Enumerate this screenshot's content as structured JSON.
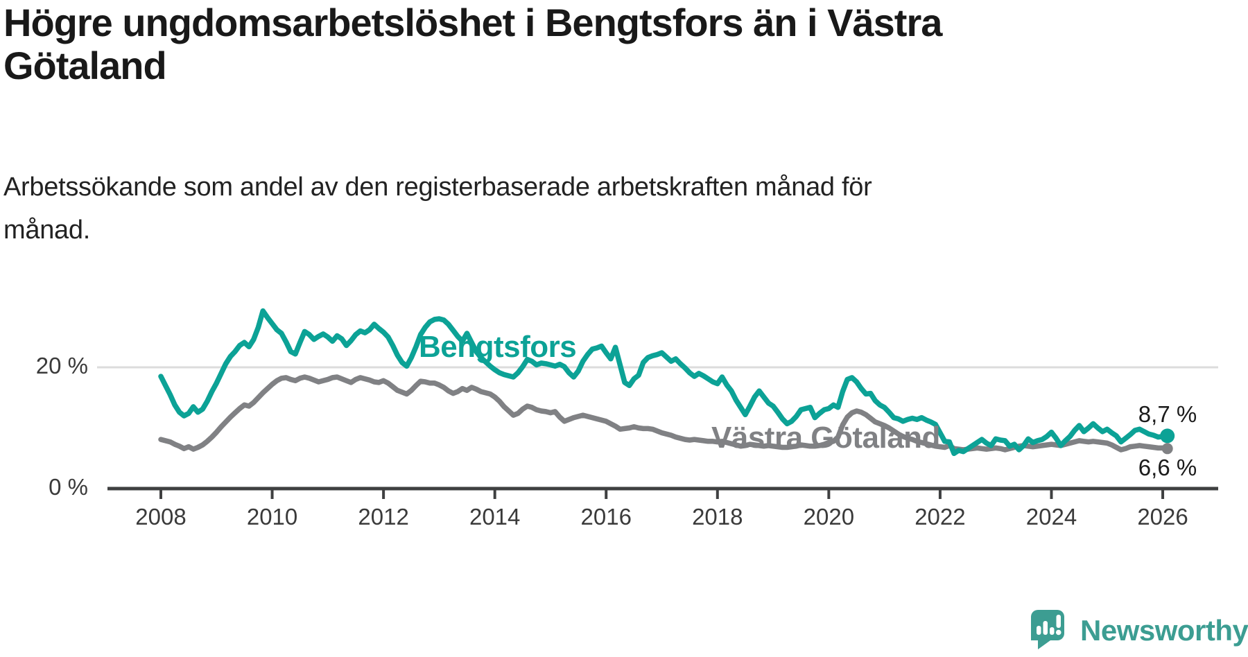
{
  "header": {
    "title": "Högre ungdomsarbetslöshet i Bengtsfors än i Västra\nGötaland",
    "subtitle": "Arbetssökande som andel av den registerbaserade arbetskraften månad för\nmånad."
  },
  "colors": {
    "bengtsfors": "#0CA296",
    "vastra_gotaland": "#808184",
    "axis": "#3F4041",
    "tick_text": "#3a3a3a",
    "grid": "#DCDCDC",
    "value_text": "#1b1b1b",
    "brand": "#3C9D92"
  },
  "chart_data": {
    "type": "line",
    "title": "Högre ungdomsarbetslöshet i Bengtsfors än i Västra Götaland",
    "subtitle": "Arbetssökande som andel av den registerbaserade arbetskraften månad för månad.",
    "x_start": "2008-01",
    "x_end": "2026-02",
    "x_ticks": [
      2008,
      2010,
      2012,
      2014,
      2016,
      2018,
      2020,
      2022,
      2024,
      2026
    ],
    "y_ticks": [
      {
        "value": 0,
        "label": "0 %"
      },
      {
        "value": 20,
        "label": "20 %"
      }
    ],
    "ylim": [
      0,
      31
    ],
    "grid": "horizontal line at 20% only",
    "legend_position": "inline labels on lines",
    "series": [
      {
        "name": "Bengtsfors",
        "color": "#0CA296",
        "end_label": "8,7 %",
        "end_value": 8.7,
        "values": [
          18.5,
          17.0,
          15.5,
          13.8,
          12.6,
          12.0,
          12.4,
          13.5,
          12.6,
          13.1,
          14.4,
          16.0,
          17.4,
          19.0,
          20.6,
          21.8,
          22.6,
          23.6,
          24.1,
          23.4,
          24.6,
          26.6,
          29.3,
          28.2,
          27.2,
          26.2,
          25.6,
          24.2,
          22.6,
          22.2,
          24.1,
          25.9,
          25.4,
          24.6,
          25.1,
          25.5,
          25.0,
          24.3,
          25.2,
          24.7,
          23.6,
          24.4,
          25.4,
          26.0,
          25.7,
          26.2,
          27.1,
          26.4,
          25.8,
          25.0,
          23.6,
          22.0,
          20.8,
          20.2,
          21.6,
          23.4,
          25.4,
          26.6,
          27.5,
          27.9,
          28.0,
          27.8,
          27.1,
          26.1,
          25.1,
          24.3,
          25.6,
          24.1,
          22.6,
          21.6,
          20.9,
          20.2,
          19.6,
          19.1,
          18.8,
          18.6,
          18.4,
          19.1,
          20.1,
          21.3,
          21.0,
          20.4,
          20.7,
          20.6,
          20.4,
          20.2,
          20.5,
          20.1,
          19.1,
          18.4,
          19.4,
          21.0,
          22.1,
          23.0,
          23.2,
          23.5,
          22.4,
          21.4,
          23.3,
          20.4,
          17.5,
          17.0,
          18.1,
          18.7,
          20.8,
          21.6,
          21.9,
          22.1,
          22.4,
          21.7,
          21.0,
          21.4,
          20.6,
          19.9,
          19.1,
          18.5,
          19.0,
          18.6,
          18.1,
          17.6,
          17.3,
          18.4,
          17.1,
          16.1,
          14.6,
          13.4,
          12.2,
          13.6,
          15.1,
          16.1,
          15.1,
          14.1,
          13.6,
          12.6,
          11.5,
          10.7,
          11.1,
          11.9,
          13.0,
          13.2,
          13.4,
          11.7,
          12.4,
          13.0,
          13.2,
          13.8,
          13.4,
          16.0,
          18.0,
          18.3,
          17.6,
          16.5,
          15.6,
          15.7,
          14.5,
          13.8,
          13.4,
          12.6,
          11.7,
          11.5,
          11.1,
          11.4,
          11.6,
          11.4,
          11.7,
          11.3,
          11.0,
          10.6,
          9.2,
          7.8,
          7.7,
          5.8,
          6.3,
          6.1,
          6.6,
          7.1,
          7.6,
          8.1,
          7.5,
          7.1,
          8.2,
          8.0,
          7.9,
          7.0,
          7.3,
          6.4,
          7.1,
          8.2,
          7.6,
          7.9,
          8.1,
          8.6,
          9.3,
          8.3,
          7.1,
          7.9,
          8.6,
          9.6,
          10.4,
          9.4,
          10.0,
          10.7,
          10.0,
          9.4,
          9.8,
          9.2,
          8.7,
          7.7,
          8.3,
          8.9,
          9.6,
          9.8,
          9.4,
          9.0,
          8.8,
          8.5,
          8.6,
          8.7
        ]
      },
      {
        "name": "Västra Götaland",
        "color": "#808184",
        "end_label": "6,6 %",
        "end_value": 6.6,
        "values": [
          8.1,
          7.9,
          7.7,
          7.3,
          7.0,
          6.6,
          6.9,
          6.5,
          6.8,
          7.2,
          7.8,
          8.5,
          9.3,
          10.2,
          11.0,
          11.8,
          12.5,
          13.2,
          13.8,
          13.6,
          14.2,
          15.0,
          15.8,
          16.5,
          17.2,
          17.8,
          18.2,
          18.3,
          18.0,
          17.8,
          18.2,
          18.4,
          18.2,
          17.9,
          17.6,
          17.8,
          18.0,
          18.3,
          18.4,
          18.1,
          17.8,
          17.5,
          18.0,
          18.3,
          18.1,
          17.9,
          17.6,
          17.5,
          17.8,
          17.4,
          16.8,
          16.2,
          15.9,
          15.6,
          16.2,
          17.0,
          17.7,
          17.6,
          17.4,
          17.4,
          17.1,
          16.7,
          16.1,
          15.7,
          16.0,
          16.5,
          16.2,
          16.7,
          16.4,
          16.0,
          15.8,
          15.6,
          15.1,
          14.4,
          13.5,
          12.8,
          12.1,
          12.4,
          13.1,
          13.6,
          13.4,
          13.0,
          12.8,
          12.7,
          12.5,
          12.7,
          11.8,
          11.1,
          11.4,
          11.7,
          11.9,
          12.1,
          11.9,
          11.7,
          11.5,
          11.3,
          11.1,
          10.7,
          10.3,
          9.8,
          9.9,
          10.0,
          10.2,
          10.0,
          9.9,
          9.9,
          9.8,
          9.5,
          9.2,
          9.0,
          8.8,
          8.5,
          8.3,
          8.1,
          8.0,
          8.1,
          8.0,
          7.9,
          7.8,
          7.8,
          7.7,
          7.8,
          7.6,
          7.4,
          7.2,
          7.0,
          7.1,
          7.3,
          7.2,
          7.1,
          7.0,
          7.1,
          7.0,
          6.9,
          6.8,
          6.8,
          6.9,
          7.0,
          7.2,
          7.1,
          7.0,
          7.0,
          7.1,
          7.3,
          7.6,
          7.8,
          8.5,
          10.5,
          11.8,
          12.5,
          12.8,
          12.6,
          12.2,
          11.6,
          11.0,
          10.7,
          10.4,
          10.0,
          9.5,
          9.0,
          8.6,
          8.3,
          8.1,
          7.8,
          7.6,
          7.4,
          7.2,
          7.0,
          6.9,
          6.8,
          7.1,
          6.6,
          6.5,
          6.4,
          6.5,
          6.6,
          6.7,
          6.6,
          6.5,
          6.6,
          6.7,
          6.6,
          6.4,
          6.6,
          6.8,
          7.0,
          7.1,
          7.0,
          6.9,
          7.0,
          7.1,
          7.2,
          7.3,
          7.2,
          7.1,
          7.3,
          7.5,
          7.7,
          7.9,
          7.8,
          7.7,
          7.8,
          7.7,
          7.6,
          7.5,
          7.2,
          6.8,
          6.4,
          6.6,
          6.9,
          7.0,
          7.1,
          7.0,
          6.9,
          6.8,
          6.7,
          6.7,
          6.6
        ]
      }
    ]
  },
  "footer": {
    "brand": "Newsworthy"
  }
}
